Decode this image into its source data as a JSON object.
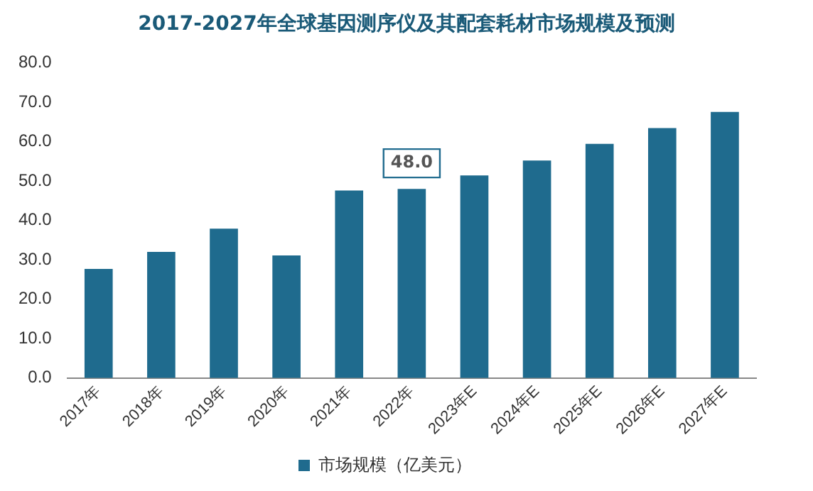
{
  "chart_data": {
    "type": "bar",
    "title": "2017-2027年全球基因测序仪及其配套耗材市场规模及预测",
    "categories": [
      "2017年",
      "2018年",
      "2019年",
      "2020年",
      "2021年",
      "2022年",
      "2023年E",
      "2024年E",
      "2025年E",
      "2026年E",
      "2027年E"
    ],
    "series": [
      {
        "name": "市场规模（亿美元）",
        "color": "#1f6b8e",
        "values": [
          27.7,
          32.0,
          37.9,
          31.1,
          47.6,
          48.0,
          51.4,
          55.2,
          59.4,
          63.4,
          67.5
        ],
        "value_labels": [
          null,
          null,
          null,
          null,
          null,
          "48.0",
          null,
          null,
          null,
          null,
          null
        ]
      }
    ],
    "ylim": [
      0,
      80
    ],
    "yticks": [
      {
        "value": 0,
        "label": "0.0"
      },
      {
        "value": 10,
        "label": "10.0"
      },
      {
        "value": 20,
        "label": "20.0"
      },
      {
        "value": 30,
        "label": "30.0"
      },
      {
        "value": 40,
        "label": "40.0"
      },
      {
        "value": 50,
        "label": "50.0"
      },
      {
        "value": 60,
        "label": "60.0"
      },
      {
        "value": 70,
        "label": "70.0"
      },
      {
        "value": 80,
        "label": "80.0"
      }
    ],
    "grid": false,
    "legend": "bottom"
  }
}
